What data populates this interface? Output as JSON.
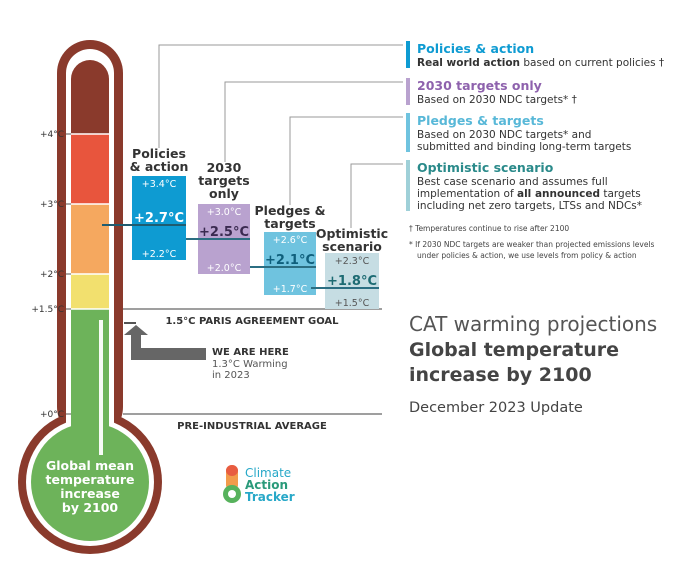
{
  "chart_data": {
    "type": "bar",
    "y_axis": {
      "unit": "°C",
      "ticks": [
        {
          "value": 0,
          "label": "+0°C"
        },
        {
          "value": 1.5,
          "label": "+1.5°C"
        },
        {
          "value": 2,
          "label": "+2°C"
        },
        {
          "value": 3,
          "label": "+3°C"
        },
        {
          "value": 4,
          "label": "+4°C"
        }
      ]
    },
    "thermometer_bands": [
      {
        "from": 0,
        "to": 1.5,
        "color": "#6db35a"
      },
      {
        "from": 1.5,
        "to": 2,
        "color": "#f2e06e"
      },
      {
        "from": 2,
        "to": 3,
        "color": "#f5a85f"
      },
      {
        "from": 3,
        "to": 4,
        "color": "#e8553d"
      },
      {
        "from": 4,
        "to": 5.2,
        "color": "#8a3a2c"
      }
    ],
    "series": [
      {
        "id": "policies",
        "label_lines": [
          "Policies",
          "& action"
        ],
        "low": 2.2,
        "central": 2.7,
        "high": 3.4,
        "low_label": "+2.2°C",
        "central_label": "+2.7°C",
        "high_label": "+3.4°C",
        "color": "#0e9bd2",
        "text_color": "#ffffff",
        "central_color": "#ffffff"
      },
      {
        "id": "targets2030",
        "label_lines": [
          "2030",
          "targets",
          "only"
        ],
        "low": 2.0,
        "central": 2.5,
        "high": 3.0,
        "low_label": "+2.0°C",
        "central_label": "+2.5°C",
        "high_label": "+3.0°C",
        "color": "#b9a2cf",
        "text_color": "#ffffff",
        "central_color": "#3a2a50"
      },
      {
        "id": "pledges",
        "label_lines": [
          "Pledges &",
          "targets"
        ],
        "low": 1.7,
        "central": 2.1,
        "high": 2.6,
        "low_label": "+1.7°C",
        "central_label": "+2.1°C",
        "high_label": "+2.6°C",
        "color": "#6fc3df",
        "text_color": "#ffffff",
        "central_color": "#0f5f7c"
      },
      {
        "id": "optimistic",
        "label_lines": [
          "Optimistic",
          "scenario"
        ],
        "low": 1.5,
        "central": 1.8,
        "high": 2.3,
        "low_label": "+1.5°C",
        "central_label": "+1.8°C",
        "high_label": "+2.3°C",
        "color": "#c6dde3",
        "text_color": "#555555",
        "central_color": "#1d6b73"
      }
    ],
    "reference_lines": [
      {
        "value": 1.5,
        "label": "1.5°C PARIS AGREEMENT GOAL"
      },
      {
        "value": 0,
        "label": "PRE-INDUSTRIAL AVERAGE"
      }
    ],
    "current_level": {
      "value": 1.3,
      "title": "WE ARE HERE",
      "detail_lines": [
        "1.3°C Warming",
        "in 2023"
      ]
    },
    "bulb_text_lines": [
      "Global mean",
      "temperature",
      "increase",
      "by 2100"
    ]
  },
  "legend": [
    {
      "title": "Policies & action",
      "title_color": "#0e9bd2",
      "bar_color": "#0e9bd2",
      "lines": [
        [
          {
            "t": "Real world action",
            "b": true
          },
          {
            "t": " based on current policies †",
            "b": false
          }
        ]
      ]
    },
    {
      "title": "2030 targets only",
      "title_color": "#8e62ad",
      "bar_color": "#b9a2cf",
      "lines": [
        [
          {
            "t": "Based on 2030 NDC targets* †",
            "b": false
          }
        ]
      ]
    },
    {
      "title": "Pledges & targets",
      "title_color": "#58b8d8",
      "bar_color": "#6fc3df",
      "lines": [
        [
          {
            "t": "Based on 2030 NDC targets* and",
            "b": false
          }
        ],
        [
          {
            "t": "submitted and binding long-term targets",
            "b": false
          }
        ]
      ]
    },
    {
      "title": "Optimistic scenario",
      "title_color": "#2a8a8a",
      "bar_color": "#9fd0d8",
      "lines": [
        [
          {
            "t": "Best case scenario and assumes full",
            "b": false
          }
        ],
        [
          {
            "t": "implementation of ",
            "b": false
          },
          {
            "t": "all announced",
            "b": true
          },
          {
            "t": " targets",
            "b": false
          }
        ],
        [
          {
            "t": "including net zero targets, LTSs and NDCs*",
            "b": false
          }
        ]
      ]
    }
  ],
  "notes": [
    "† Temperatures continue to rise after 2100",
    "* If 2030 NDC targets are weaker than projected emissions levels",
    "under policies & action, we use levels from policy & action"
  ],
  "title_block": {
    "line1": "CAT warming projections",
    "line2": "Global temperature",
    "line3": "increase by 2100",
    "date": "December 2023 Update"
  },
  "logo": {
    "lines": [
      "Climate",
      "Action",
      "Tracker"
    ]
  }
}
